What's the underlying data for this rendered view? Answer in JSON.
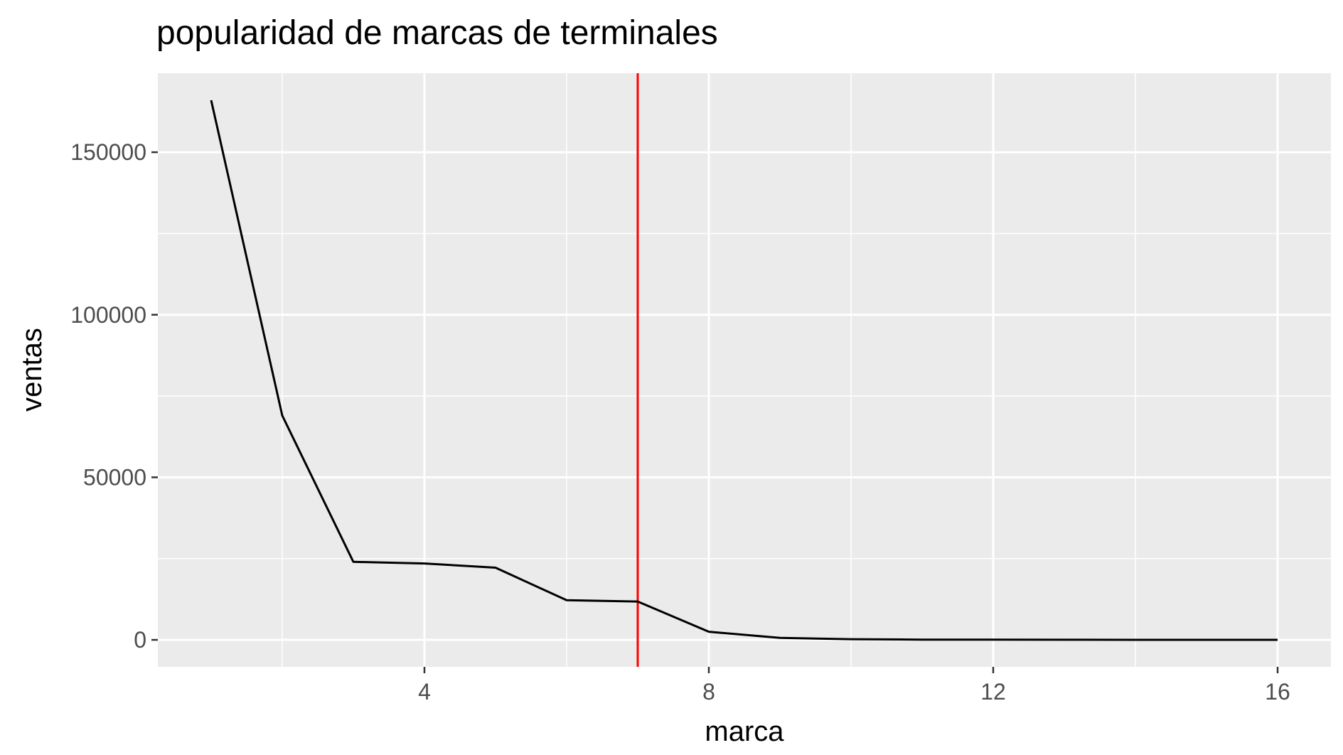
{
  "chart_data": {
    "type": "line",
    "title": "popularidad de marcas de terminales",
    "xlabel": "marca",
    "ylabel": "ventas",
    "x": [
      1,
      2,
      3,
      4,
      5,
      6,
      7,
      8,
      9,
      10,
      11,
      12,
      13,
      14,
      15,
      16
    ],
    "series": [
      {
        "values": [
          166000,
          69000,
          24000,
          23500,
          22200,
          12200,
          11800,
          2500,
          600,
          200,
          80,
          50,
          30,
          20,
          10,
          5
        ],
        "color": "#000000"
      }
    ],
    "reference_line": {
      "axis": "x",
      "value": 7,
      "color": "#ff0000"
    },
    "xlim": [
      0.25,
      16.75
    ],
    "ylim": [
      -8300,
      174300
    ],
    "x_ticks": [
      4,
      8,
      12,
      16
    ],
    "x_tick_labels": [
      "4",
      "8",
      "12",
      "16"
    ],
    "y_ticks": [
      0,
      50000,
      100000,
      150000
    ],
    "y_tick_labels": [
      "0",
      "50000",
      "100000",
      "150000"
    ],
    "x_minor_ticks": [
      2,
      6,
      10,
      14
    ],
    "y_minor_ticks": [
      25000,
      75000,
      125000
    ],
    "grid": true,
    "panel_background": "#ebebeb",
    "grid_color": "#ffffff"
  }
}
